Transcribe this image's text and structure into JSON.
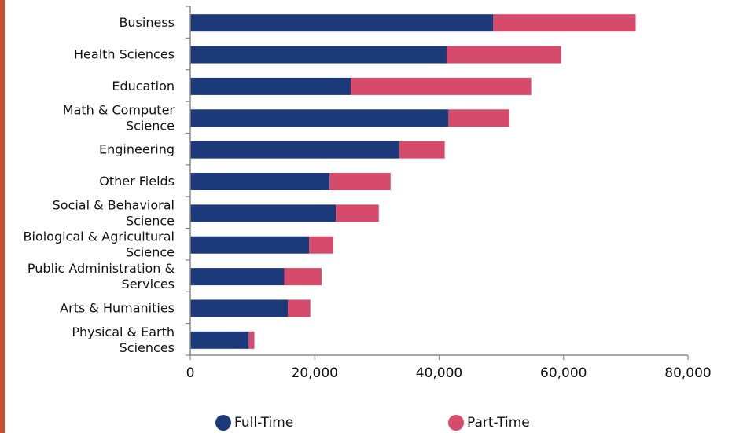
{
  "chart_data": {
    "type": "bar",
    "orientation": "horizontal",
    "stacked": true,
    "categories": [
      "Business",
      "Health Sciences",
      "Education",
      "Math & Computer Science",
      "Engineering",
      "Other Fields",
      "Social & Behavioral Science",
      "Biological & Agricultural Science",
      "Public Administration & Services",
      "Arts & Humanities",
      "Physical & Earth Sciences"
    ],
    "category_lines": [
      [
        "Business"
      ],
      [
        "Health Sciences"
      ],
      [
        "Education"
      ],
      [
        "Math & Computer",
        "Science"
      ],
      [
        "Engineering"
      ],
      [
        "Other Fields"
      ],
      [
        "Social & Behavioral",
        "Science"
      ],
      [
        "Biological & Agricultural",
        "Science"
      ],
      [
        "Public Administration &",
        "Services"
      ],
      [
        "Arts & Humanities"
      ],
      [
        "Physical & Earth",
        "Sciences"
      ]
    ],
    "series": [
      {
        "name": "Full-Time",
        "color": "#1c3a7a",
        "values": [
          48700,
          41200,
          25800,
          41500,
          33600,
          22400,
          23400,
          19100,
          15100,
          15700,
          9400
        ]
      },
      {
        "name": "Part-Time",
        "color": "#d64a6b",
        "values": [
          22900,
          18400,
          29000,
          9800,
          7300,
          9800,
          6900,
          3900,
          6000,
          3600,
          900
        ]
      }
    ],
    "xlim": [
      0,
      80000
    ],
    "xticks": [
      0,
      20000,
      40000,
      60000,
      80000
    ],
    "xtick_labels": [
      "0",
      "20,000",
      "40,000",
      "60,000",
      "80,000"
    ],
    "grid": false,
    "legend_position": "bottom"
  }
}
